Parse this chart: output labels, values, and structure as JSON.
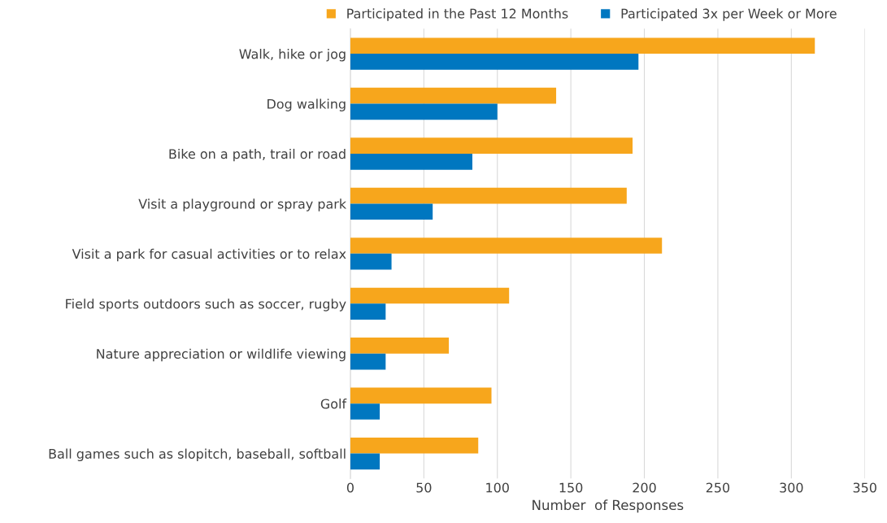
{
  "chart_data": {
    "type": "bar",
    "orientation": "horizontal",
    "xlabel": "Number  of Responses",
    "categories": [
      "Walk, hike or jog",
      "Dog walking",
      "Bike on a path, trail or road",
      "Visit a playground or spray park",
      "Visit a park for casual activities or to relax",
      "Field sports outdoors such as soccer, rugby",
      "Nature appreciation or wildlife viewing",
      "Golf",
      "Ball games such as slopitch, baseball, softball"
    ],
    "series": [
      {
        "name": "Participated in the Past 12 Months",
        "color": "#f7a61c",
        "values": [
          316,
          140,
          192,
          188,
          212,
          108,
          67,
          96,
          87
        ]
      },
      {
        "name": "Participated 3x per Week or More",
        "color": "#0077c0",
        "values": [
          196,
          100,
          83,
          56,
          28,
          24,
          24,
          20,
          20
        ]
      }
    ],
    "xlim": [
      0,
      350
    ],
    "xticks": [
      0,
      50,
      100,
      150,
      200,
      250,
      300,
      350
    ],
    "grid": "x",
    "legend": "top"
  }
}
